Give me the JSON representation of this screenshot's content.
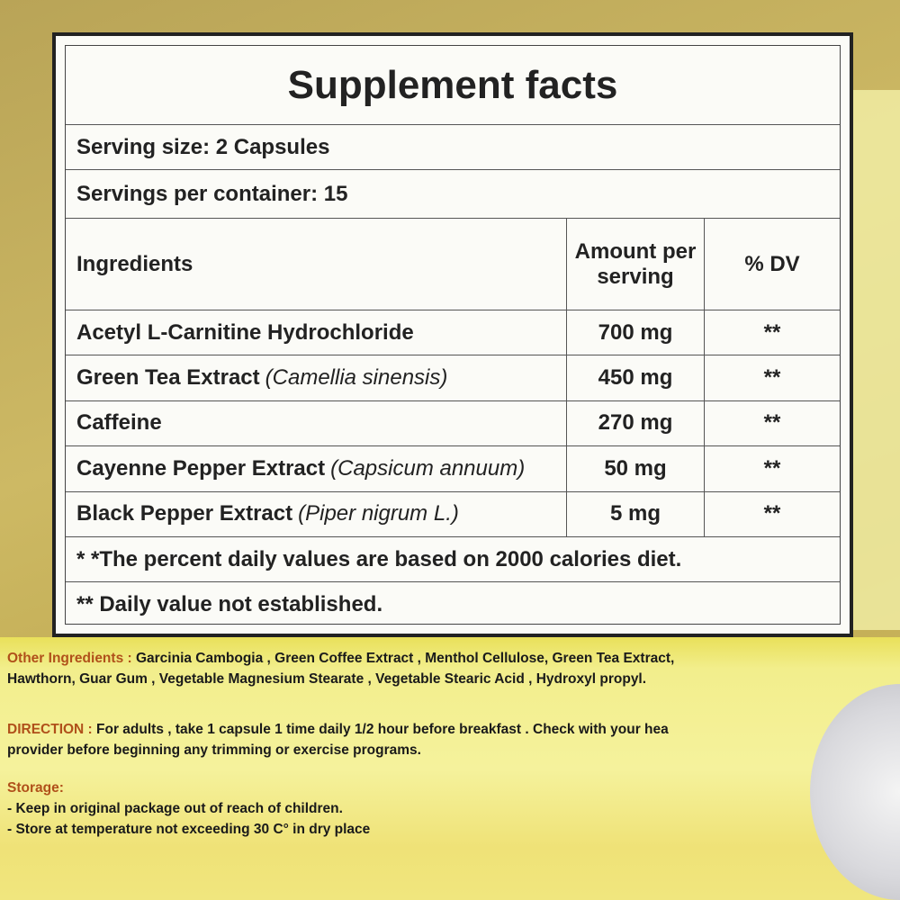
{
  "facts": {
    "title": "Supplement facts",
    "serving_size": "Serving size: 2 Capsules",
    "servings_per_container": "Servings per container: 15",
    "headers": {
      "ingredients": "Ingredients",
      "amount": "Amount per serving",
      "dv": "% DV"
    },
    "rows": [
      {
        "name": "Acetyl L-Carnitine Hydrochloride",
        "sci": "",
        "amount": "700 mg",
        "dv": "**"
      },
      {
        "name": "Green Tea Extract",
        "sci": "(Camellia sinensis)",
        "amount": "450 mg",
        "dv": "**"
      },
      {
        "name": "Caffeine",
        "sci": "",
        "amount": "270 mg",
        "dv": "**"
      },
      {
        "name": "Cayenne Pepper Extract",
        "sci": "(Capsicum annuum)",
        "amount": "50 mg",
        "dv": "**"
      },
      {
        "name": "Black Pepper Extract",
        "sci": "(Piper nigrum L.)",
        "amount": "5 mg",
        "dv": "**"
      }
    ],
    "footnote1": "* *The percent daily values are based on 2000 calories diet.",
    "footnote2": "** Daily value not established."
  },
  "other_ingredients": {
    "label": "Other Ingredients :",
    "line1": "Garcinia Cambogia , Green Coffee Extract , Menthol Cellulose, Green Tea Extract,",
    "line2": "Hawthorn, Guar Gum , Vegetable Magnesium Stearate , Vegetable Stearic Acid , Hydroxyl propyl."
  },
  "direction": {
    "label": "DIRECTION :",
    "line1": "For adults , take 1 capsule 1 time daily 1/2 hour before breakfast . Check with your hea",
    "line2": "provider before beginning any trimming or exercise programs."
  },
  "storage": {
    "label": "Storage:",
    "items": [
      "- Keep in original package out of reach of children.",
      "- Store at temperature not exceeding 30 C° in dry place"
    ]
  },
  "colors": {
    "label_accent": "#b0501a",
    "background_yellow": "#f2ee8c",
    "background_gold": "#c7b35e"
  }
}
